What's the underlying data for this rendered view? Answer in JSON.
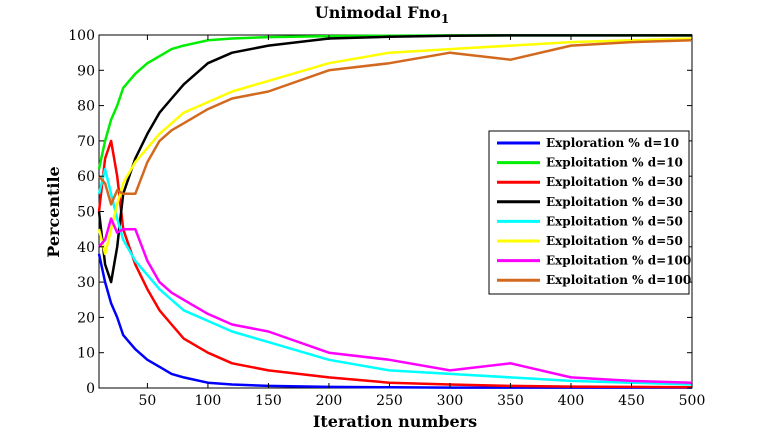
{
  "chart_data": {
    "type": "line",
    "title": "Unimodal Fno",
    "title_subscript": "1",
    "xlabel": "Iteration numbers",
    "ylabel": "Percentile",
    "xlim": [
      10,
      500
    ],
    "ylim": [
      0,
      100
    ],
    "xticks": [
      50,
      100,
      150,
      200,
      250,
      300,
      350,
      400,
      450,
      500
    ],
    "yticks": [
      0,
      10,
      20,
      30,
      40,
      50,
      60,
      70,
      80,
      90,
      100
    ],
    "grid": false,
    "legend_position": "right",
    "series": [
      {
        "name": "Exploration % d=10",
        "color": "#0000ff",
        "x": [
          10,
          15,
          20,
          25,
          30,
          40,
          50,
          60,
          70,
          80,
          100,
          120,
          150,
          200,
          250,
          300,
          350,
          400,
          450,
          500
        ],
        "y": [
          38,
          30,
          24,
          20,
          15,
          11,
          8,
          6,
          4,
          3,
          1.5,
          1,
          0.6,
          0.3,
          0.2,
          0.1,
          0.1,
          0.1,
          0.1,
          0.1
        ]
      },
      {
        "name": "Exploitation % d=10",
        "color": "#00ee00",
        "x": [
          10,
          15,
          20,
          25,
          30,
          40,
          50,
          60,
          70,
          80,
          100,
          120,
          150,
          200,
          250,
          300,
          350,
          400,
          450,
          500
        ],
        "y": [
          62,
          70,
          76,
          80,
          85,
          89,
          92,
          94,
          96,
          97,
          98.5,
          99,
          99.4,
          99.7,
          99.8,
          99.9,
          99.9,
          99.9,
          99.9,
          99.9
        ]
      },
      {
        "name": "Exploitation % d=30",
        "color": "#ff0000",
        "x": [
          10,
          15,
          20,
          25,
          30,
          40,
          50,
          60,
          70,
          80,
          100,
          120,
          150,
          200,
          250,
          300,
          350,
          400,
          450,
          500
        ],
        "y": [
          50,
          65,
          70,
          60,
          45,
          35,
          28,
          22,
          18,
          14,
          10,
          7,
          5,
          3,
          1.5,
          1,
          0.6,
          0.4,
          0.3,
          0.2
        ]
      },
      {
        "name": "Exploitation % d=30",
        "color": "#000000",
        "x": [
          10,
          15,
          20,
          25,
          30,
          40,
          50,
          60,
          70,
          80,
          100,
          120,
          150,
          200,
          250,
          300,
          350,
          400,
          450,
          500
        ],
        "y": [
          50,
          35,
          30,
          40,
          55,
          65,
          72,
          78,
          82,
          86,
          92,
          95,
          97,
          99,
          99.5,
          99.8,
          99.9,
          99.9,
          99.9,
          99.9
        ]
      },
      {
        "name": "Exploitation % d=50",
        "color": "#00ffff",
        "x": [
          10,
          15,
          20,
          25,
          30,
          40,
          50,
          60,
          70,
          80,
          100,
          120,
          150,
          200,
          250,
          300,
          350,
          400,
          450,
          500
        ],
        "y": [
          55,
          62,
          55,
          48,
          42,
          36,
          32,
          28,
          25,
          22,
          19,
          16,
          13,
          8,
          5,
          4,
          3,
          2,
          1.5,
          1
        ]
      },
      {
        "name": "Exploitation % d=50",
        "color": "#ffff00",
        "x": [
          10,
          15,
          20,
          25,
          30,
          40,
          50,
          60,
          70,
          80,
          100,
          120,
          150,
          200,
          250,
          300,
          350,
          400,
          450,
          500
        ],
        "y": [
          45,
          38,
          45,
          52,
          58,
          64,
          68,
          72,
          75,
          78,
          81,
          84,
          87,
          92,
          95,
          96,
          97,
          98,
          98.5,
          99
        ]
      },
      {
        "name": "Exploitation % d=100",
        "color": "#ff00ff",
        "x": [
          10,
          15,
          20,
          25,
          30,
          40,
          50,
          60,
          70,
          80,
          100,
          120,
          150,
          200,
          250,
          300,
          350,
          400,
          450,
          500
        ],
        "y": [
          40,
          42,
          48,
          44,
          45,
          45,
          36,
          30,
          27,
          25,
          21,
          18,
          16,
          10,
          8,
          5,
          7,
          3,
          2,
          1.5
        ]
      },
      {
        "name": "Exploitation % d=100",
        "color": "#d2691e",
        "x": [
          10,
          15,
          20,
          25,
          30,
          40,
          50,
          60,
          70,
          80,
          100,
          120,
          150,
          200,
          250,
          300,
          350,
          400,
          450,
          500
        ],
        "y": [
          60,
          58,
          52,
          56,
          55,
          55,
          64,
          70,
          73,
          75,
          79,
          82,
          84,
          90,
          92,
          95,
          93,
          97,
          98,
          98.5
        ]
      }
    ]
  }
}
